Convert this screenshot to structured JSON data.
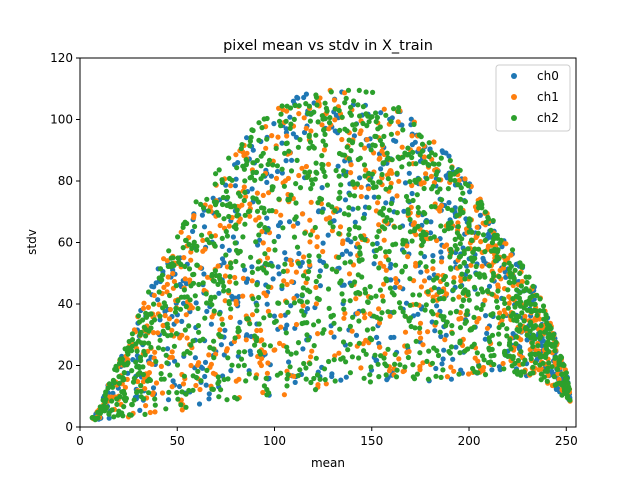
{
  "chart_data": {
    "type": "scatter",
    "title": "pixel mean vs stdv in X_train",
    "xlabel": "mean",
    "ylabel": "stdv",
    "xlim": [
      0,
      255
    ],
    "ylim": [
      0,
      120
    ],
    "xticks": [
      0,
      50,
      100,
      150,
      200,
      250
    ],
    "yticks": [
      0,
      20,
      40,
      60,
      80,
      100,
      120
    ],
    "grid": false,
    "legend_position": "top-right",
    "series": [
      {
        "name": "ch0",
        "color": "#1f77b4"
      },
      {
        "name": "ch1",
        "color": "#ff7f0e"
      },
      {
        "name": "ch2",
        "color": "#2ca02c"
      }
    ],
    "envelope": {
      "upper": [
        [
          5,
          2
        ],
        [
          10,
          6
        ],
        [
          15,
          15
        ],
        [
          20,
          22
        ],
        [
          30,
          37
        ],
        [
          40,
          52
        ],
        [
          50,
          64
        ],
        [
          60,
          74
        ],
        [
          70,
          83
        ],
        [
          80,
          90
        ],
        [
          90,
          98
        ],
        [
          100,
          103
        ],
        [
          110,
          107
        ],
        [
          120,
          110
        ],
        [
          130,
          110
        ],
        [
          140,
          110
        ],
        [
          150,
          109
        ],
        [
          160,
          106
        ],
        [
          170,
          101
        ],
        [
          180,
          94
        ],
        [
          190,
          88
        ],
        [
          200,
          80
        ],
        [
          210,
          70
        ],
        [
          220,
          60
        ],
        [
          230,
          50
        ],
        [
          240,
          38
        ],
        [
          250,
          18
        ],
        [
          253,
          8
        ]
      ],
      "lower": [
        [
          5,
          2
        ],
        [
          20,
          3
        ],
        [
          40,
          4
        ],
        [
          60,
          6
        ],
        [
          80,
          8
        ],
        [
          100,
          10
        ],
        [
          120,
          12
        ],
        [
          140,
          14
        ],
        [
          160,
          15
        ],
        [
          180,
          15
        ],
        [
          200,
          16
        ],
        [
          220,
          18
        ],
        [
          240,
          14
        ],
        [
          250,
          9
        ],
        [
          253,
          8
        ]
      ]
    }
  }
}
